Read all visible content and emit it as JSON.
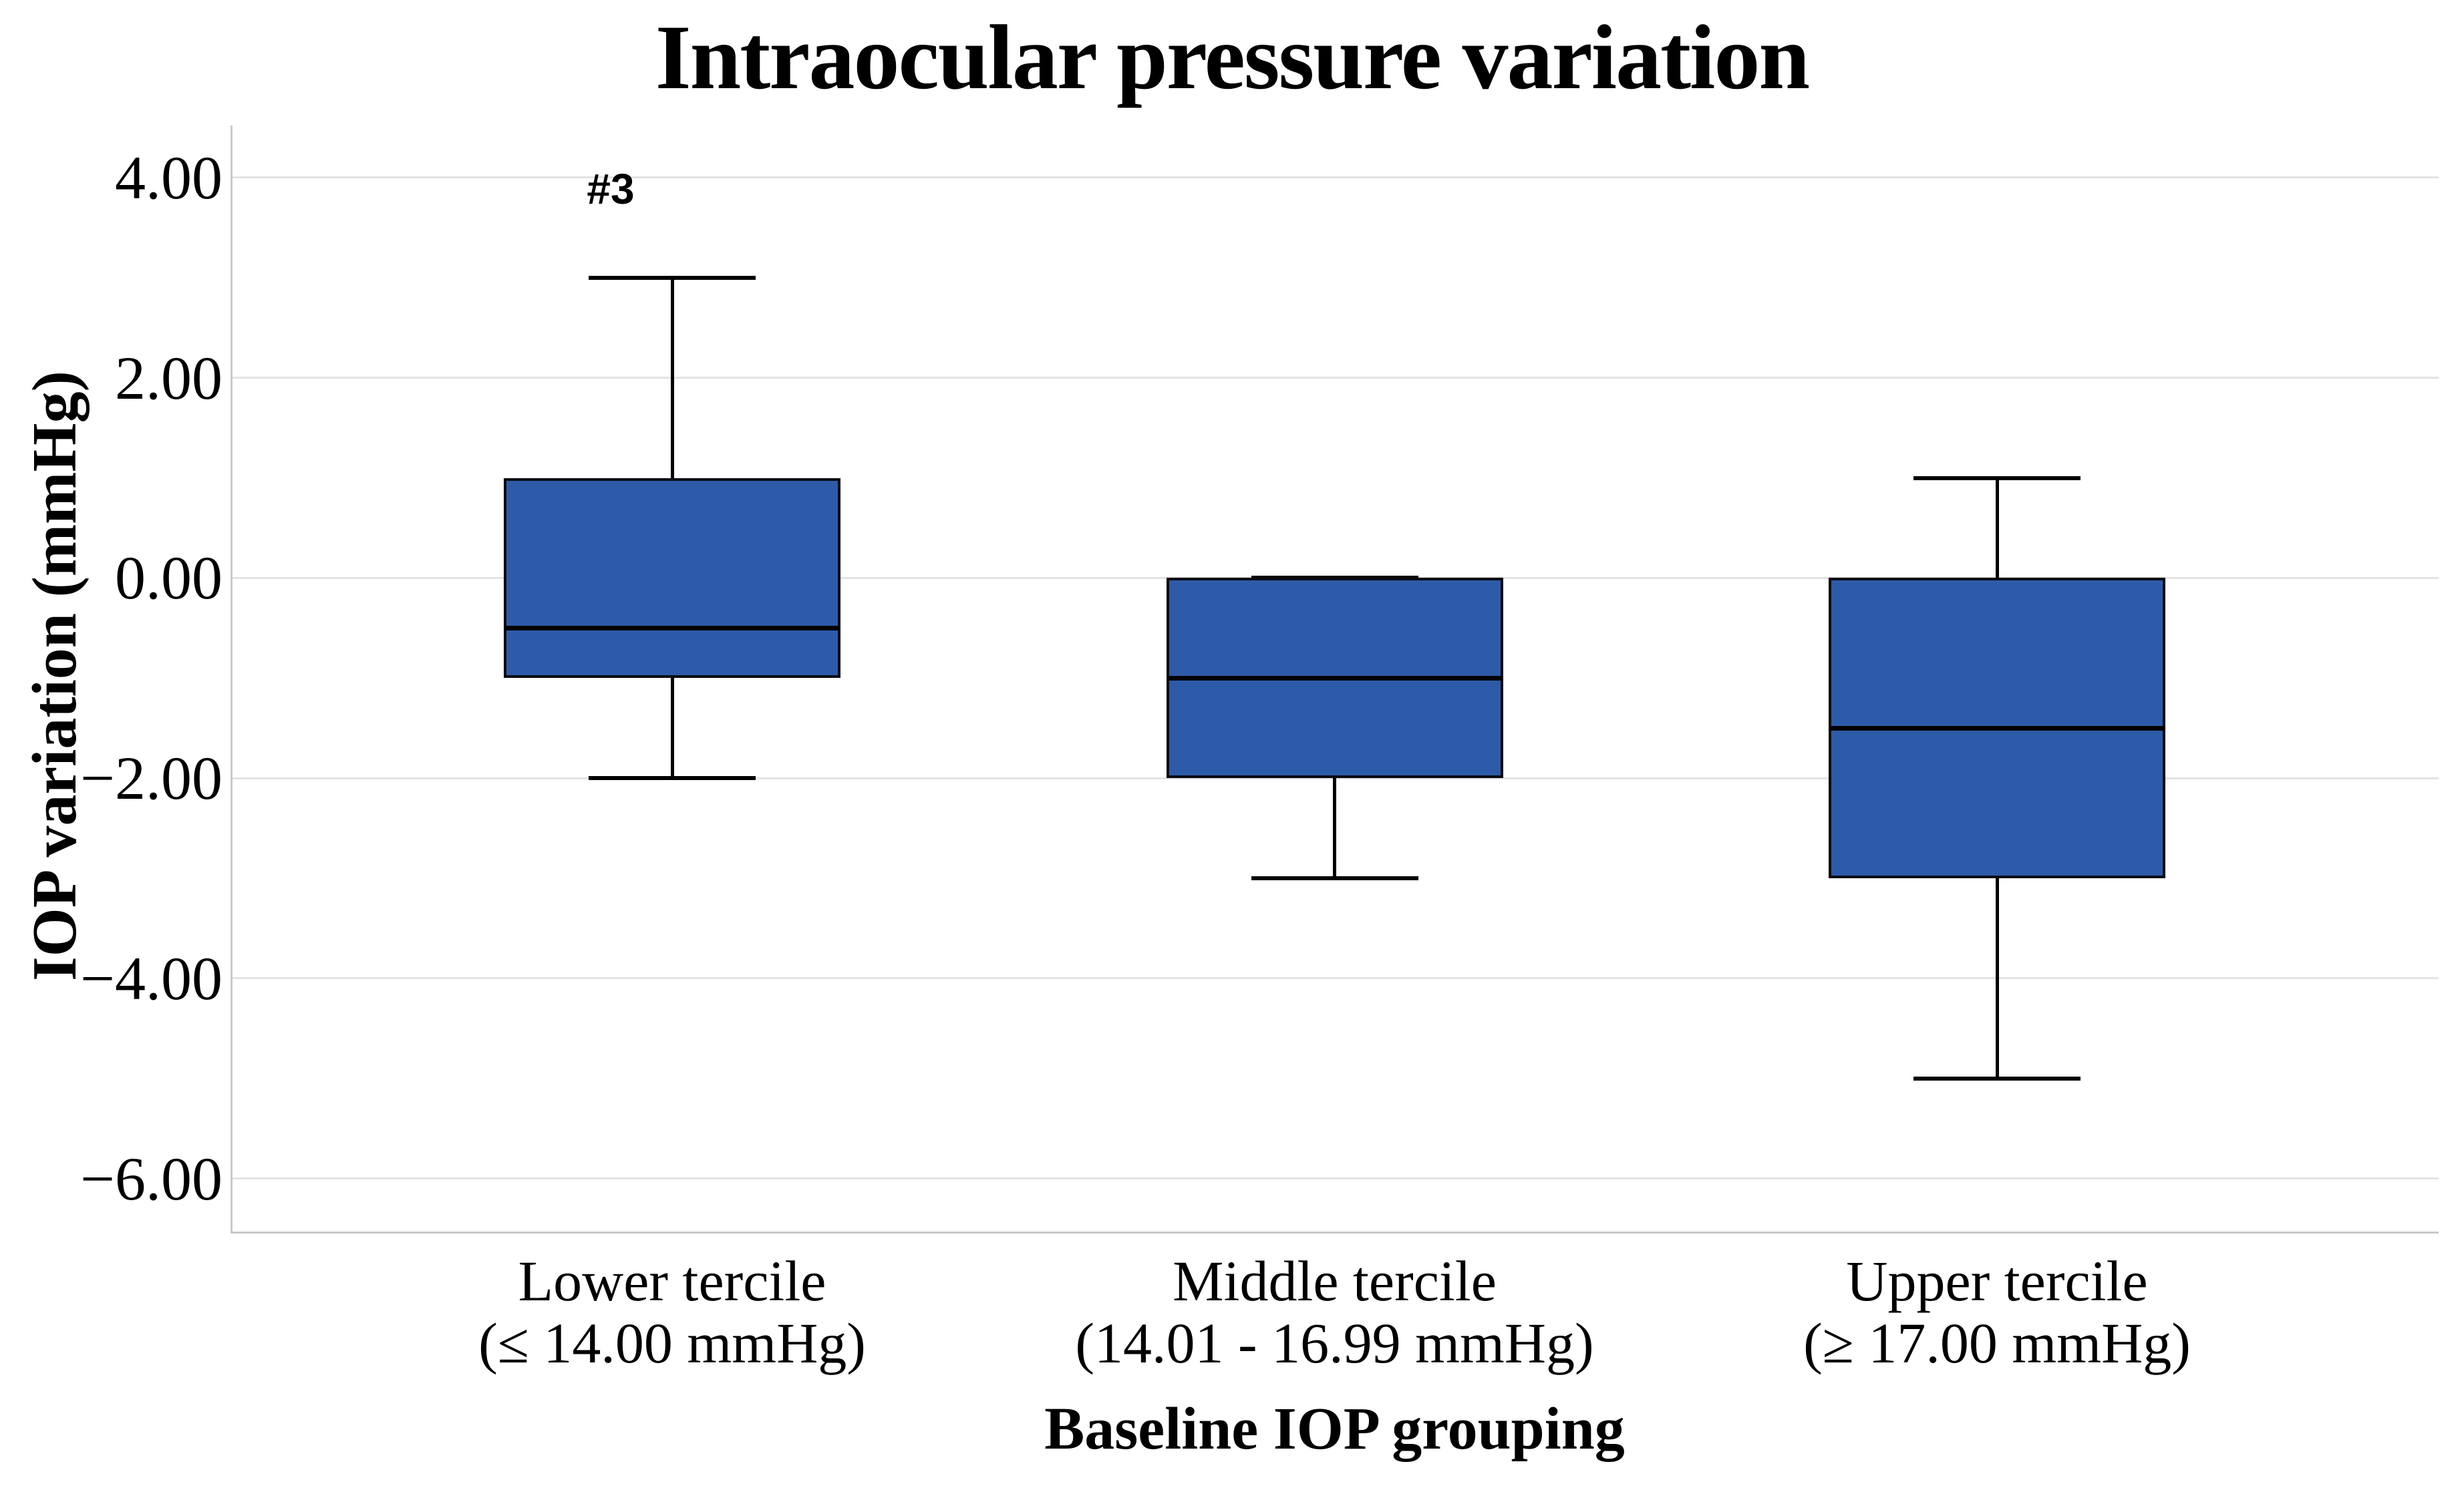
{
  "chart_data": {
    "type": "boxplot",
    "title": "Intraocular pressure variation",
    "xlabel": "Baseline IOP grouping",
    "ylabel": "IOP variation (mmHg)",
    "ylim": [
      -6.55,
      4.52
    ],
    "grid": "horizontal",
    "legend": "none",
    "yticks": [
      {
        "value": 4,
        "label": "4.00"
      },
      {
        "value": 2,
        "label": "2.00"
      },
      {
        "value": 0,
        "label": "0.00"
      },
      {
        "value": -2,
        "label": "−2.00"
      },
      {
        "value": -4,
        "label": "−4.00"
      },
      {
        "value": -6,
        "label": "−6.00"
      }
    ],
    "groups": [
      {
        "label_line1": "Lower tercile",
        "label_line2": "(≤ 14.00 mmHg)",
        "whisker_low": -2.0,
        "q1": -1.0,
        "median": -0.5,
        "q3": 1.0,
        "whisker_high": 3.0,
        "annotation": "#3"
      },
      {
        "label_line1": "Middle tercile",
        "label_line2": "(14.01 - 16.99 mmHg)",
        "whisker_low": -3.0,
        "q1": -2.0,
        "median": -1.0,
        "q3": 0.0,
        "whisker_high": 0.0,
        "annotation": ""
      },
      {
        "label_line1": "Upper tercile",
        "label_line2": "(≥ 17.00 mmHg)",
        "whisker_low": -5.0,
        "q1": -3.0,
        "median": -1.5,
        "q3": 0.0,
        "whisker_high": 1.0,
        "annotation": ""
      }
    ],
    "colors": {
      "box_fill": "#2D5BA9",
      "box_border": "#0A0A14",
      "median": "#000000",
      "whisker": "#000000",
      "gridline": "#E3E3E3",
      "axis_line": "#C9C9C9",
      "text": "#000000",
      "background": "#FFFFFF"
    }
  }
}
